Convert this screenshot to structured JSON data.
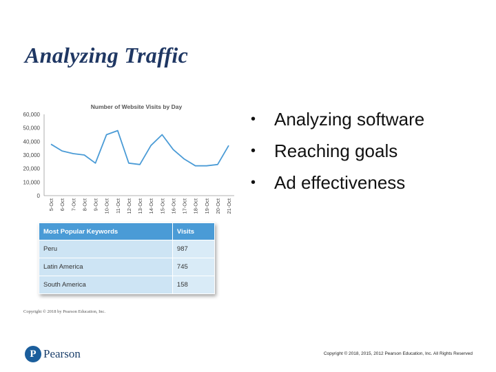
{
  "slide": {
    "title": "Analyzing Traffic",
    "bullets": [
      "Analyzing software",
      "Reaching goals",
      "Ad effectiveness"
    ],
    "bullet_glyph": "•",
    "figure_credit": "Copyright © 2018 by Pearson Education, Inc.",
    "footer_copyright": "Copyright © 2018, 2015, 2012 Pearson Education, Inc. All Rights Reserved",
    "logo_text": "Pearson",
    "logo_mark": "P",
    "accent_color": "#1f3763"
  },
  "chart_data": {
    "type": "line",
    "title": "Number of Website Visits by Day",
    "categories": [
      "5-Oct",
      "6-Oct",
      "7-Oct",
      "8-Oct",
      "9-Oct",
      "10-Oct",
      "11-Oct",
      "12-Oct",
      "13-Oct",
      "14-Oct",
      "15-Oct",
      "16-Oct",
      "17-Oct",
      "18-Oct",
      "19-Oct",
      "20-Oct",
      "21-Oct"
    ],
    "values": [
      38000,
      33000,
      31000,
      30000,
      24000,
      45000,
      48000,
      24000,
      23000,
      37000,
      45000,
      34000,
      27000,
      22000,
      22000,
      23000,
      37000
    ],
    "y_ticks": [
      "0",
      "10,000",
      "20,000",
      "30,000",
      "40,000",
      "50,000",
      "60,000"
    ],
    "ylim": [
      0,
      60000
    ],
    "grid": false,
    "line_color": "#4a9bd6"
  },
  "keywords_table": {
    "headers": [
      "Most Popular Keywords",
      "Visits"
    ],
    "rows": [
      [
        "Peru",
        "987"
      ],
      [
        "Latin America",
        "745"
      ],
      [
        "South America",
        "158"
      ]
    ],
    "header_color": "#4a9bd6"
  }
}
